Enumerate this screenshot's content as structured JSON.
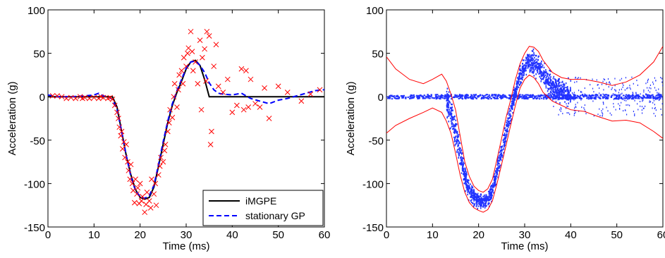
{
  "chart_data": [
    {
      "type": "scatter",
      "xlabel": "Time (ms)",
      "ylabel": "Acceleration (g)",
      "xlim": [
        0,
        60
      ],
      "ylim": [
        -150,
        100
      ],
      "xticks": [
        0,
        10,
        20,
        30,
        40,
        50,
        60
      ],
      "yticks": [
        -150,
        -100,
        -50,
        0,
        50,
        100
      ],
      "legend": {
        "placement": "bottom-right",
        "entries": [
          "iMGPE",
          "stationary GP"
        ]
      },
      "series": [
        {
          "name": "iMGPE",
          "kind": "line",
          "color": "#000000",
          "points": [
            [
              0,
              0
            ],
            [
              14,
              0
            ],
            [
              15,
              -12
            ],
            [
              16,
              -40
            ],
            [
              17,
              -68
            ],
            [
              18,
              -90
            ],
            [
              19,
              -107
            ],
            [
              20,
              -116
            ],
            [
              21,
              -118
            ],
            [
              22,
              -116
            ],
            [
              23,
              -104
            ],
            [
              24,
              -80
            ],
            [
              25,
              -55
            ],
            [
              26,
              -30
            ],
            [
              27,
              -10
            ],
            [
              28,
              5
            ],
            [
              29,
              18
            ],
            [
              30,
              32
            ],
            [
              31,
              40
            ],
            [
              32,
              42
            ],
            [
              33,
              36
            ],
            [
              34,
              20
            ],
            [
              35,
              0
            ],
            [
              60,
              0
            ]
          ]
        },
        {
          "name": "stationary GP",
          "kind": "line",
          "style": "dashed",
          "color": "#0000ff",
          "points": [
            [
              0,
              2
            ],
            [
              2,
              0
            ],
            [
              5,
              0
            ],
            [
              8,
              1
            ],
            [
              10,
              2
            ],
            [
              11,
              4
            ],
            [
              12,
              1
            ],
            [
              13,
              0
            ],
            [
              14,
              -3
            ],
            [
              15,
              -15
            ],
            [
              16,
              -40
            ],
            [
              17,
              -68
            ],
            [
              18,
              -92
            ],
            [
              19,
              -108
            ],
            [
              20,
              -115
            ],
            [
              21,
              -117
            ],
            [
              22,
              -114
            ],
            [
              23,
              -102
            ],
            [
              24,
              -78
            ],
            [
              25,
              -52
            ],
            [
              26,
              -28
            ],
            [
              27,
              -8
            ],
            [
              28,
              7
            ],
            [
              29,
              20
            ],
            [
              30,
              33
            ],
            [
              31,
              40
            ],
            [
              32,
              41
            ],
            [
              33,
              36
            ],
            [
              34,
              28
            ],
            [
              35,
              16
            ],
            [
              36,
              8
            ],
            [
              37,
              4
            ],
            [
              38,
              3
            ],
            [
              40,
              2
            ],
            [
              42,
              4
            ],
            [
              44,
              -2
            ],
            [
              46,
              -5
            ],
            [
              48,
              -8
            ],
            [
              50,
              -4
            ],
            [
              52,
              -2
            ],
            [
              54,
              1
            ],
            [
              56,
              4
            ],
            [
              58,
              7
            ],
            [
              60,
              8
            ]
          ]
        },
        {
          "name": "",
          "kind": "markers",
          "marker": "x",
          "color": "#ff0000",
          "points": [
            [
              1,
              1
            ],
            [
              2,
              1
            ],
            [
              3,
              0
            ],
            [
              4,
              -2
            ],
            [
              5,
              -1
            ],
            [
              6,
              -2
            ],
            [
              7,
              0
            ],
            [
              7.5,
              -2
            ],
            [
              8,
              -1
            ],
            [
              9,
              -2
            ],
            [
              10,
              -1
            ],
            [
              11,
              -2
            ],
            [
              11.5,
              0
            ],
            [
              12,
              -1
            ],
            [
              13,
              -2
            ],
            [
              13.5,
              -1
            ],
            [
              14,
              -3
            ],
            [
              14.5,
              -10
            ],
            [
              15,
              -18
            ],
            [
              15.3,
              -25
            ],
            [
              15.5,
              -35
            ],
            [
              15.8,
              -45
            ],
            [
              16,
              -40
            ],
            [
              16.2,
              -60
            ],
            [
              16.5,
              -52
            ],
            [
              16.7,
              -70
            ],
            [
              17,
              -55
            ],
            [
              17.3,
              -75
            ],
            [
              17.5,
              -85
            ],
            [
              17.8,
              -95
            ],
            [
              18,
              -78
            ],
            [
              18.3,
              -100
            ],
            [
              18.5,
              -108
            ],
            [
              18.8,
              -122
            ],
            [
              19,
              -95
            ],
            [
              19.3,
              -112
            ],
            [
              19.5,
              -105
            ],
            [
              19.8,
              -123
            ],
            [
              20,
              -100
            ],
            [
              20.3,
              -120
            ],
            [
              20.5,
              -115
            ],
            [
              21,
              -133
            ],
            [
              21.3,
              -124
            ],
            [
              21.5,
              -110
            ],
            [
              22,
              -120
            ],
            [
              22.3,
              -128
            ],
            [
              22.5,
              -95
            ],
            [
              23,
              -112
            ],
            [
              23.3,
              -100
            ],
            [
              23.5,
              -125
            ],
            [
              24,
              -90
            ],
            [
              24.3,
              -80
            ],
            [
              24.5,
              -70
            ],
            [
              25,
              -75
            ],
            [
              25.3,
              -62
            ],
            [
              25.5,
              -55
            ],
            [
              26,
              -40
            ],
            [
              26.3,
              -30
            ],
            [
              26.5,
              -15
            ],
            [
              27,
              -24
            ],
            [
              27.3,
              0
            ],
            [
              27.5,
              15
            ],
            [
              28,
              -12
            ],
            [
              28.3,
              8
            ],
            [
              28.5,
              25
            ],
            [
              29,
              30
            ],
            [
              29.3,
              15
            ],
            [
              29.5,
              45
            ],
            [
              30,
              35
            ],
            [
              30.3,
              50
            ],
            [
              30.5,
              56
            ],
            [
              31,
              75
            ],
            [
              31.3,
              52
            ],
            [
              31.5,
              30
            ],
            [
              32,
              40
            ],
            [
              32.5,
              15
            ],
            [
              33,
              65
            ],
            [
              33.3,
              -15
            ],
            [
              33.5,
              45
            ],
            [
              34,
              55
            ],
            [
              34.3,
              18
            ],
            [
              34.5,
              75
            ],
            [
              35,
              70
            ],
            [
              35.3,
              -55
            ],
            [
              35.5,
              -40
            ],
            [
              36,
              35
            ],
            [
              36.5,
              60
            ],
            [
              37,
              12
            ],
            [
              38,
              5
            ],
            [
              39,
              20
            ],
            [
              40,
              -18
            ],
            [
              41,
              -10
            ],
            [
              42,
              32
            ],
            [
              42.5,
              -15
            ],
            [
              43,
              30
            ],
            [
              43.5,
              -12
            ],
            [
              44,
              20
            ],
            [
              45,
              -8
            ],
            [
              46,
              -12
            ],
            [
              47,
              10
            ],
            [
              48,
              -25
            ],
            [
              50,
              12
            ],
            [
              52,
              5
            ],
            [
              55,
              -5
            ],
            [
              57,
              3
            ],
            [
              59,
              8
            ]
          ]
        }
      ]
    },
    {
      "type": "scatter",
      "xlabel": "Time (ms)",
      "ylabel": "Acceleration (g)",
      "xlim": [
        0,
        60
      ],
      "ylim": [
        -150,
        100
      ],
      "xticks": [
        0,
        10,
        20,
        30,
        40,
        50,
        60
      ],
      "yticks": [
        -150,
        -100,
        -50,
        0,
        50,
        100
      ],
      "series": [
        {
          "name": "",
          "kind": "line",
          "color": "#ff0000",
          "points": [
            [
              0,
              46
            ],
            [
              2,
              32
            ],
            [
              5,
              20
            ],
            [
              8,
              15
            ],
            [
              10,
              20
            ],
            [
              12,
              26
            ],
            [
              13,
              18
            ],
            [
              14,
              3
            ],
            [
              15,
              -15
            ],
            [
              16,
              -45
            ],
            [
              17,
              -75
            ],
            [
              18,
              -92
            ],
            [
              19,
              -103
            ],
            [
              20,
              -108
            ],
            [
              21,
              -110
            ],
            [
              22,
              -106
            ],
            [
              23,
              -95
            ],
            [
              24,
              -72
            ],
            [
              25,
              -48
            ],
            [
              26,
              -23
            ],
            [
              27,
              -3
            ],
            [
              28,
              20
            ],
            [
              29,
              38
            ],
            [
              30,
              50
            ],
            [
              31,
              58
            ],
            [
              32,
              57
            ],
            [
              33,
              52
            ],
            [
              34,
              42
            ],
            [
              36,
              28
            ],
            [
              38,
              22
            ],
            [
              40,
              20
            ],
            [
              43,
              20
            ],
            [
              46,
              17
            ],
            [
              49,
              13
            ],
            [
              52,
              17
            ],
            [
              55,
              25
            ],
            [
              58,
              40
            ],
            [
              60,
              58
            ]
          ]
        },
        {
          "name": "",
          "kind": "line",
          "color": "#ff0000",
          "points": [
            [
              0,
              -42
            ],
            [
              2,
              -33
            ],
            [
              5,
              -25
            ],
            [
              8,
              -18
            ],
            [
              10,
              -13
            ],
            [
              12,
              -18
            ],
            [
              13,
              -28
            ],
            [
              14,
              -42
            ],
            [
              15,
              -65
            ],
            [
              16,
              -90
            ],
            [
              17,
              -110
            ],
            [
              18,
              -122
            ],
            [
              19,
              -128
            ],
            [
              20,
              -131
            ],
            [
              21,
              -133
            ],
            [
              22,
              -130
            ],
            [
              23,
              -120
            ],
            [
              24,
              -100
            ],
            [
              25,
              -78
            ],
            [
              26,
              -55
            ],
            [
              27,
              -32
            ],
            [
              28,
              -10
            ],
            [
              29,
              10
            ],
            [
              30,
              20
            ],
            [
              31,
              25
            ],
            [
              32,
              22
            ],
            [
              33,
              15
            ],
            [
              34,
              5
            ],
            [
              36,
              -5
            ],
            [
              38,
              -10
            ],
            [
              40,
              -15
            ],
            [
              43,
              -17
            ],
            [
              46,
              -23
            ],
            [
              49,
              -28
            ],
            [
              52,
              -27
            ],
            [
              55,
              -30
            ],
            [
              58,
              -40
            ],
            [
              60,
              -48
            ]
          ]
        }
      ]
    }
  ]
}
